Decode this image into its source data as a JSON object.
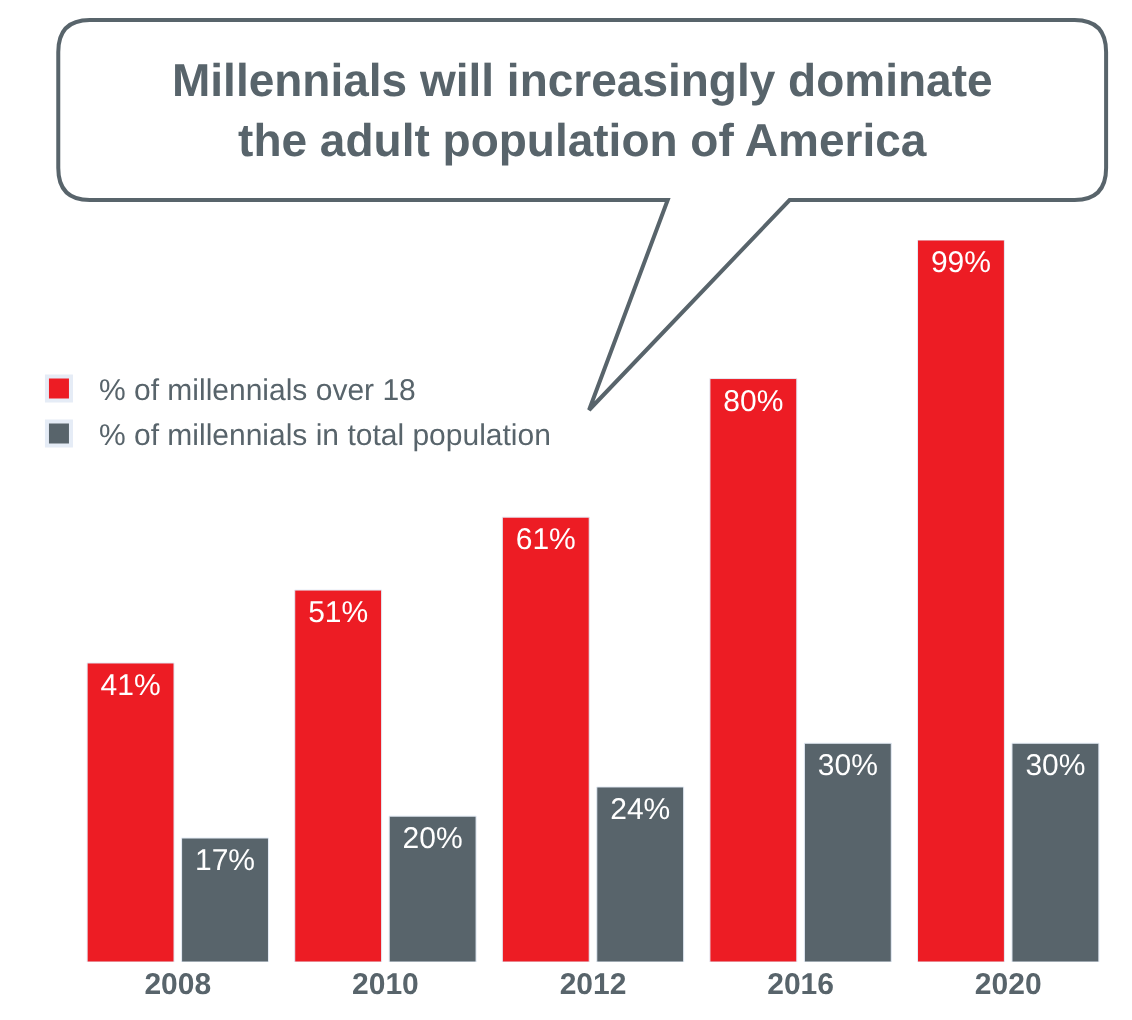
{
  "chart_data": {
    "type": "bar",
    "title": "Millennials will increasingly dominate\nthe adult population of America",
    "categories": [
      "2008",
      "2010",
      "2012",
      "2016",
      "2020"
    ],
    "series": [
      {
        "name": "% of millennials over 18",
        "color": "#ed1c24",
        "values": [
          41,
          51,
          61,
          80,
          99
        ],
        "value_labels": [
          "41%",
          "51%",
          "61%",
          "80%",
          "99%"
        ]
      },
      {
        "name": "% of millennials in total population",
        "color": "#58646b",
        "values": [
          17,
          20,
          24,
          30,
          30
        ],
        "value_labels": [
          "17%",
          "20%",
          "24%",
          "30%",
          "30%"
        ]
      }
    ],
    "legend": "top left",
    "grid": false
  }
}
